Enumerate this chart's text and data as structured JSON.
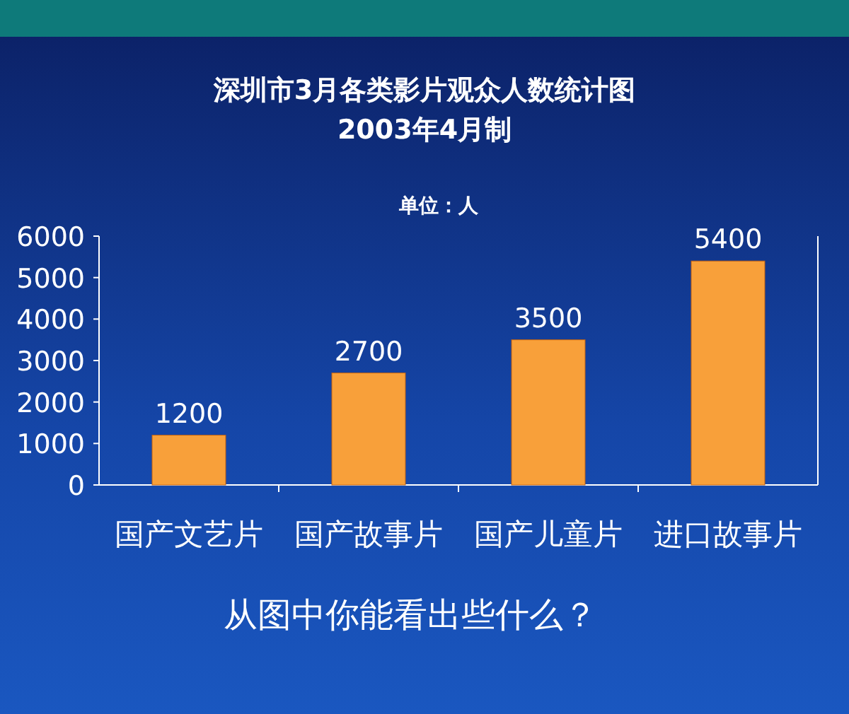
{
  "chart_data": {
    "type": "bar",
    "title": "深圳市3月各类影片观众人数统计图",
    "subtitle": "2003年4月制",
    "ylabel": "单位：人",
    "categories": [
      "国产文艺片",
      "国产故事片",
      "国产儿童片",
      "进口故事片"
    ],
    "values": [
      1200,
      2700,
      3500,
      5400
    ],
    "color": "#f8a03a",
    "ylim": [
      0,
      6000
    ],
    "yticks": [
      0,
      1000,
      2000,
      3000,
      4000,
      5000,
      6000
    ],
    "data_labels": true,
    "grid": false,
    "annotations": [
      "从图中你能看出些什么？"
    ]
  }
}
